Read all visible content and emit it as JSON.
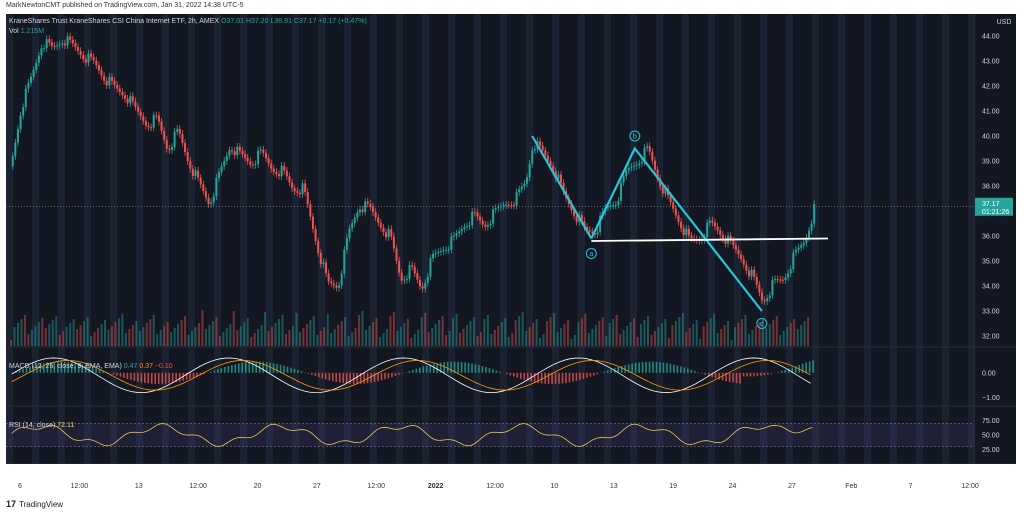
{
  "publisher": "MarkNewtonCMT published on TradingView.com, Jan 31, 2022 14:38 UTC-5",
  "header": {
    "symbol_title": "KraneShares Trust KraneShares CSI China Internet ETF, 2h, AMEX",
    "ohlc": {
      "O": "O37.01",
      "H": "H37.20",
      "L": "L36.91",
      "C": "C37.17",
      "change": "+0.17 (+0.47%)"
    },
    "vol_label": "Vol",
    "vol_value": "1.215M"
  },
  "price_axis": {
    "currency": "USD",
    "ticks": [
      "44.00",
      "43.00",
      "42.00",
      "41.00",
      "40.00",
      "39.00",
      "38.00",
      "36.00",
      "35.00",
      "34.00",
      "33.00",
      "32.00"
    ],
    "last_price": "37.17",
    "countdown": "01:21:26"
  },
  "macd": {
    "label": "MACD (12, 26, close, 9, EMA, EMA)",
    "v1": "0.47",
    "v2": "0.37",
    "v3": "−0.10",
    "ticks": [
      "0.00",
      "−1.00"
    ]
  },
  "rsi": {
    "label": "RSI (14, close)",
    "value": "72.11",
    "ticks": [
      "75.00",
      "50.00",
      "25.00"
    ]
  },
  "time_axis": [
    "6",
    "12:00",
    "13",
    "12:00",
    "20",
    "27",
    "12:00",
    "2022",
    "12:00",
    "10",
    "13",
    "19",
    "24",
    "27",
    "Feb",
    "7",
    "12:00"
  ],
  "footer": {
    "logo": "17",
    "brand": "TradingView"
  },
  "colors": {
    "background": "#131722",
    "up": "#26a69a",
    "down": "#ef5350",
    "wave": "#26c6da",
    "macd_line": "#ffffff",
    "signal_line": "#ff9800",
    "rsi_line": "#e6c84a"
  },
  "chart_data": {
    "type": "candlestick",
    "title": "KraneShares Trust KraneShares CSI China Internet ETF, 2h, AMEX",
    "ylim": [
      31.6,
      44.4
    ],
    "price_path": [
      [
        0,
        38.8
      ],
      [
        6,
        41.2
      ],
      [
        12,
        42.4
      ],
      [
        18,
        43.8
      ],
      [
        24,
        43.5
      ],
      [
        30,
        43.9
      ],
      [
        36,
        43.6
      ],
      [
        42,
        43.2
      ],
      [
        48,
        42.9
      ],
      [
        54,
        42.3
      ],
      [
        60,
        41.9
      ],
      [
        66,
        41.6
      ],
      [
        72,
        41.0
      ],
      [
        78,
        40.5
      ],
      [
        84,
        40.7
      ],
      [
        90,
        39.5
      ],
      [
        96,
        40.2
      ],
      [
        102,
        39.0
      ],
      [
        108,
        38.1
      ],
      [
        114,
        37.3
      ],
      [
        120,
        38.5
      ],
      [
        126,
        39.6
      ],
      [
        132,
        39.2
      ],
      [
        138,
        38.9
      ],
      [
        144,
        39.3
      ],
      [
        150,
        38.7
      ],
      [
        156,
        38.6
      ],
      [
        162,
        37.9
      ],
      [
        168,
        37.9
      ],
      [
        176,
        35.6
      ],
      [
        182,
        34.1
      ],
      [
        188,
        34.0
      ],
      [
        194,
        36.1
      ],
      [
        200,
        37.2
      ],
      [
        206,
        37.1
      ],
      [
        212,
        36.5
      ],
      [
        218,
        36.0
      ],
      [
        224,
        34.3
      ],
      [
        230,
        34.7
      ],
      [
        236,
        33.9
      ],
      [
        242,
        35.1
      ],
      [
        248,
        35.5
      ],
      [
        254,
        35.8
      ],
      [
        260,
        36.4
      ],
      [
        266,
        36.8
      ],
      [
        272,
        36.4
      ],
      [
        278,
        36.9
      ],
      [
        284,
        37.3
      ],
      [
        290,
        37.5
      ],
      [
        296,
        38.2
      ],
      [
        300,
        39.8
      ],
      [
        306,
        39.3
      ],
      [
        312,
        38.7
      ],
      [
        318,
        37.6
      ],
      [
        324,
        36.9
      ],
      [
        330,
        36.2
      ],
      [
        336,
        36.2
      ],
      [
        342,
        37.1
      ],
      [
        348,
        37.4
      ],
      [
        354,
        38.6
      ],
      [
        360,
        39.0
      ],
      [
        366,
        39.5
      ],
      [
        372,
        38.3
      ],
      [
        378,
        37.4
      ],
      [
        384,
        36.6
      ],
      [
        390,
        35.8
      ],
      [
        396,
        35.9
      ],
      [
        402,
        36.5
      ],
      [
        408,
        36.1
      ],
      [
        414,
        35.6
      ],
      [
        420,
        35.1
      ],
      [
        426,
        34.4
      ],
      [
        432,
        33.4
      ],
      [
        438,
        34.1
      ],
      [
        444,
        34.3
      ],
      [
        450,
        35.2
      ],
      [
        456,
        35.8
      ],
      [
        462,
        37.17
      ]
    ],
    "wave_a": [
      [
        300,
        40.0
      ],
      [
        334,
        35.9
      ]
    ],
    "wave_b": [
      [
        334,
        35.9
      ],
      [
        359,
        39.5
      ],
      [
        432,
        33.0
      ]
    ],
    "neckline": [
      [
        334,
        35.8
      ],
      [
        470,
        35.9
      ]
    ],
    "wave_labels": [
      {
        "text": "a",
        "x": 334,
        "y": 35.3
      },
      {
        "text": "b",
        "x": 359,
        "y": 40.0
      },
      {
        "text": "c",
        "x": 432,
        "y": 32.5
      }
    ],
    "macd_range": [
      -1.3,
      0.8
    ],
    "rsi_range": [
      0,
      100
    ],
    "rsi_last": 72.11
  }
}
